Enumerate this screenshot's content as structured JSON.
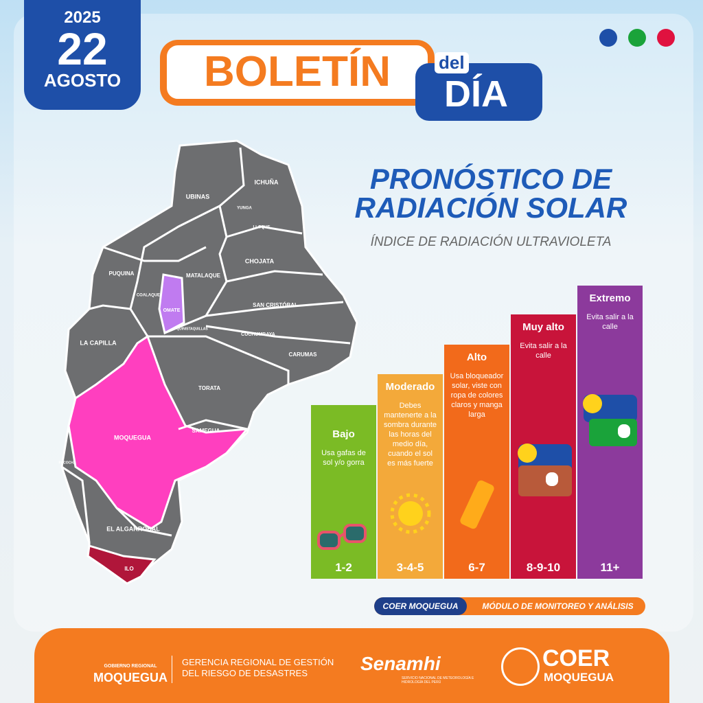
{
  "date": {
    "year": "2025",
    "day": "22",
    "month": "AGOSTO"
  },
  "header": {
    "title": "BOLETÍN",
    "connector": "del",
    "title2": "DÍA"
  },
  "heading": {
    "line1": "PRONÓSTICO DE",
    "line2": "RADIACIÓN SOLAR",
    "subtitle": "ÍNDICE DE RADIACIÓN ULTRAVIOLETA"
  },
  "map": {
    "districts": [
      "UBINAS",
      "ICHUÑA",
      "YUNGA",
      "LLOQUE",
      "CHOJATA",
      "MATALAQUE",
      "PUQUINA",
      "COALAQUE",
      "OMATE",
      "QUINISTAQUILLAS",
      "SAN CRISTÓBAL",
      "CUCHUMBAYA",
      "CARUMAS",
      "LA CAPILLA",
      "TORATA",
      "MOQUEGUA",
      "SAMEGUA",
      "PACOCHA",
      "EL ALGARROBAL",
      "ILO"
    ]
  },
  "levels": [
    {
      "name": "Bajo",
      "advice": "Usa gafas de sol y/o gorra",
      "range": "1-2"
    },
    {
      "name": "Moderado",
      "advice": "Debes mantenerte a la sombra durante las horas del medio día, cuando el sol es más fuerte",
      "range": "3-4-5"
    },
    {
      "name": "Alto",
      "advice": "Usa bloqueador solar, viste con ropa de colores claros y manga larga",
      "range": "6-7"
    },
    {
      "name": "Muy alto",
      "advice": "Evita salir a la calle",
      "range": "8-9-10"
    },
    {
      "name": "Extremo",
      "advice": "Evita salir a la calle",
      "range": "11+"
    }
  ],
  "tag": {
    "left": "COER MOQUEGUA",
    "right": "MÓDULO DE MONITOREO Y ANÁLISIS"
  },
  "footer": {
    "gov_small": "GOBIERNO REGIONAL",
    "gov": "MOQUEGUA",
    "gerencia1": "GERENCIA REGIONAL DE GESTIÓN",
    "gerencia2": "DEL RIESGO DE DESASTRES",
    "senamhi": "Senamhi",
    "senamhi_sub": "SERVICIO NACIONAL DE METEOROLOGÍA E HIDROLOGÍA DEL PERÚ",
    "coer": "COER",
    "coer_sub": "MOQUEGUA"
  }
}
